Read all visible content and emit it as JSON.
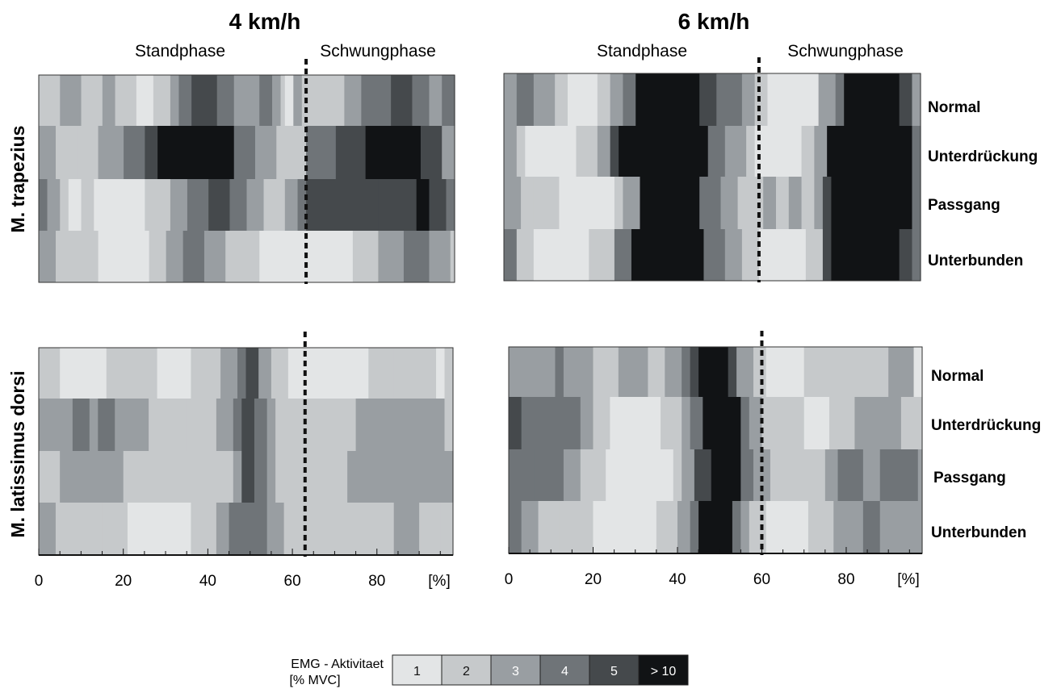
{
  "chart_data": {
    "type": "heatmap",
    "phase_labels": [
      "Standphase",
      "Schwungphase"
    ],
    "conditions": [
      "Normal",
      "Unterdrückung",
      "Passgang",
      "Unterbunden"
    ],
    "muscles": [
      "M. trapezius",
      "M. latissimus dorsi"
    ],
    "x_ticks": [
      "0",
      "20",
      "40",
      "60",
      "80",
      "[%]"
    ],
    "x_range": [
      0,
      100
    ],
    "legend": {
      "title_line1": "EMG - Aktivitaet",
      "title_line2": "[% MVC]",
      "levels": [
        "1",
        "2",
        "3",
        "4",
        "5",
        "> 10"
      ],
      "colors": [
        "#e3e5e6",
        "#c6c9cb",
        "#999ea2",
        "#6f7478",
        "#45494c",
        "#111315"
      ]
    },
    "panels": [
      {
        "speed": "4 km/h",
        "muscle": "M. trapezius",
        "divider": 63,
        "rows": [
          [
            [
              0,
              2
            ],
            [
              5,
              3
            ],
            [
              10,
              2
            ],
            [
              15,
              3
            ],
            [
              18,
              2
            ],
            [
              23,
              1
            ],
            [
              27,
              2
            ],
            [
              31,
              3
            ],
            [
              33,
              4
            ],
            [
              36,
              5
            ],
            [
              42,
              4
            ],
            [
              46,
              3
            ],
            [
              52,
              4
            ],
            [
              55,
              3
            ],
            [
              57,
              2
            ],
            [
              58,
              1
            ],
            [
              60,
              3
            ],
            [
              62,
              2
            ],
            [
              64,
              2
            ],
            [
              72,
              3
            ],
            [
              76,
              4
            ],
            [
              83,
              5
            ],
            [
              88,
              4
            ],
            [
              92,
              3
            ],
            [
              95,
              4
            ]
          ],
          [
            [
              0,
              3
            ],
            [
              4,
              2
            ],
            [
              9,
              2
            ],
            [
              14,
              3
            ],
            [
              20,
              4
            ],
            [
              25,
              5
            ],
            [
              28,
              6
            ],
            [
              46,
              4
            ],
            [
              51,
              3
            ],
            [
              56,
              2
            ],
            [
              61,
              2
            ],
            [
              63,
              4
            ],
            [
              70,
              5
            ],
            [
              77,
              6
            ],
            [
              90,
              5
            ],
            [
              95,
              3
            ]
          ],
          [
            [
              0,
              4
            ],
            [
              2,
              3
            ],
            [
              5,
              2
            ],
            [
              7,
              1
            ],
            [
              10,
              2
            ],
            [
              13,
              1
            ],
            [
              25,
              2
            ],
            [
              31,
              3
            ],
            [
              35,
              4
            ],
            [
              40,
              5
            ],
            [
              45,
              4
            ],
            [
              49,
              3
            ],
            [
              53,
              2
            ],
            [
              58,
              3
            ],
            [
              61,
              4
            ],
            [
              63,
              5
            ],
            [
              80,
              5
            ],
            [
              89,
              6
            ],
            [
              92,
              5
            ],
            [
              96,
              4
            ]
          ],
          [
            [
              0,
              3
            ],
            [
              4,
              2
            ],
            [
              14,
              1
            ],
            [
              19,
              1
            ],
            [
              26,
              2
            ],
            [
              30,
              3
            ],
            [
              34,
              4
            ],
            [
              39,
              3
            ],
            [
              44,
              2
            ],
            [
              52,
              1
            ],
            [
              59,
              1
            ],
            [
              63,
              1
            ],
            [
              74,
              2
            ],
            [
              80,
              3
            ],
            [
              86,
              4
            ],
            [
              92,
              3
            ],
            [
              97,
              2
            ]
          ]
        ]
      },
      {
        "speed": "6 km/h",
        "muscle": "M. trapezius",
        "divider": 60,
        "rows": [
          [
            [
              0,
              3
            ],
            [
              3,
              4
            ],
            [
              7,
              3
            ],
            [
              12,
              2
            ],
            [
              15,
              1
            ],
            [
              22,
              2
            ],
            [
              25,
              3
            ],
            [
              28,
              4
            ],
            [
              31,
              6
            ],
            [
              46,
              5
            ],
            [
              50,
              4
            ],
            [
              56,
              3
            ],
            [
              59,
              2
            ],
            [
              62,
              1
            ],
            [
              74,
              3
            ],
            [
              78,
              4
            ],
            [
              80,
              6
            ],
            [
              93,
              5
            ],
            [
              96,
              3
            ]
          ],
          [
            [
              0,
              3
            ],
            [
              3,
              2
            ],
            [
              5,
              1
            ],
            [
              12,
              1
            ],
            [
              17,
              2
            ],
            [
              22,
              3
            ],
            [
              25,
              5
            ],
            [
              27,
              6
            ],
            [
              48,
              4
            ],
            [
              52,
              3
            ],
            [
              57,
              2
            ],
            [
              59,
              1
            ],
            [
              65,
              1
            ],
            [
              70,
              2
            ],
            [
              73,
              3
            ],
            [
              76,
              6
            ],
            [
              96,
              4
            ]
          ],
          [
            [
              0,
              3
            ],
            [
              4,
              2
            ],
            [
              7,
              2
            ],
            [
              13,
              1
            ],
            [
              26,
              2
            ],
            [
              28,
              3
            ],
            [
              32,
              6
            ],
            [
              46,
              4
            ],
            [
              51,
              3
            ],
            [
              55,
              2
            ],
            [
              61,
              3
            ],
            [
              64,
              2
            ],
            [
              67,
              3
            ],
            [
              70,
              2
            ],
            [
              73,
              3
            ],
            [
              75,
              5
            ],
            [
              77,
              6
            ],
            [
              96,
              4
            ]
          ],
          [
            [
              0,
              4
            ],
            [
              3,
              2
            ],
            [
              7,
              1
            ],
            [
              14,
              1
            ],
            [
              20,
              2
            ],
            [
              26,
              4
            ],
            [
              30,
              6
            ],
            [
              47,
              4
            ],
            [
              52,
              3
            ],
            [
              56,
              2
            ],
            [
              60,
              1
            ],
            [
              71,
              2
            ],
            [
              75,
              5
            ],
            [
              77,
              6
            ],
            [
              93,
              5
            ],
            [
              96,
              4
            ]
          ]
        ]
      },
      {
        "speed": "4 km/h",
        "muscle": "M. latissimus dorsi",
        "divider": 63,
        "rows": [
          [
            [
              0,
              2
            ],
            [
              5,
              1
            ],
            [
              10,
              1
            ],
            [
              16,
              2
            ],
            [
              28,
              1
            ],
            [
              36,
              2
            ],
            [
              43,
              3
            ],
            [
              47,
              4
            ],
            [
              49,
              5
            ],
            [
              52,
              3
            ],
            [
              55,
              2
            ],
            [
              59,
              1
            ],
            [
              63,
              1
            ],
            [
              78,
              2
            ],
            [
              84,
              2
            ],
            [
              94,
              1
            ],
            [
              96,
              2
            ]
          ],
          [
            [
              0,
              3
            ],
            [
              8,
              4
            ],
            [
              12,
              3
            ],
            [
              14,
              4
            ],
            [
              18,
              3
            ],
            [
              26,
              2
            ],
            [
              35,
              2
            ],
            [
              42,
              3
            ],
            [
              46,
              4
            ],
            [
              48,
              5
            ],
            [
              51,
              4
            ],
            [
              54,
              3
            ],
            [
              56,
              2
            ],
            [
              61,
              2
            ],
            [
              75,
              3
            ],
            [
              96,
              2
            ]
          ],
          [
            [
              0,
              2
            ],
            [
              5,
              3
            ],
            [
              13,
              3
            ],
            [
              20,
              2
            ],
            [
              26,
              2
            ],
            [
              36,
              2
            ],
            [
              43,
              2
            ],
            [
              46,
              3
            ],
            [
              48,
              5
            ],
            [
              51,
              4
            ],
            [
              54,
              3
            ],
            [
              56,
              2
            ],
            [
              73,
              3
            ],
            [
              97,
              3
            ]
          ],
          [
            [
              0,
              3
            ],
            [
              4,
              2
            ],
            [
              15,
              2
            ],
            [
              21,
              1
            ],
            [
              36,
              2
            ],
            [
              42,
              3
            ],
            [
              45,
              4
            ],
            [
              50,
              4
            ],
            [
              54,
              3
            ],
            [
              58,
              2
            ],
            [
              62,
              2
            ],
            [
              84,
              3
            ],
            [
              90,
              2
            ],
            [
              95,
              2
            ]
          ]
        ]
      },
      {
        "speed": "6 km/h",
        "muscle": "M. latissimus dorsi",
        "divider": 60,
        "rows": [
          [
            [
              0,
              3
            ],
            [
              5,
              3
            ],
            [
              11,
              4
            ],
            [
              13,
              3
            ],
            [
              20,
              2
            ],
            [
              26,
              3
            ],
            [
              33,
              2
            ],
            [
              37,
              3
            ],
            [
              41,
              4
            ],
            [
              43,
              5
            ],
            [
              45,
              6
            ],
            [
              52,
              5
            ],
            [
              54,
              3
            ],
            [
              58,
              2
            ],
            [
              61,
              1
            ],
            [
              70,
              2
            ],
            [
              80,
              2
            ],
            [
              90,
              3
            ],
            [
              96,
              1
            ]
          ],
          [
            [
              0,
              5
            ],
            [
              3,
              4
            ],
            [
              13,
              4
            ],
            [
              17,
              3
            ],
            [
              20,
              2
            ],
            [
              24,
              1
            ],
            [
              36,
              2
            ],
            [
              41,
              3
            ],
            [
              43,
              4
            ],
            [
              46,
              6
            ],
            [
              55,
              4
            ],
            [
              57,
              3
            ],
            [
              60,
              2
            ],
            [
              65,
              2
            ],
            [
              70,
              1
            ],
            [
              76,
              2
            ],
            [
              82,
              3
            ],
            [
              88,
              3
            ],
            [
              93,
              2
            ]
          ],
          [
            [
              0,
              4
            ],
            [
              6,
              4
            ],
            [
              13,
              3
            ],
            [
              17,
              2
            ],
            [
              23,
              1
            ],
            [
              32,
              1
            ],
            [
              39,
              2
            ],
            [
              41,
              3
            ],
            [
              44,
              5
            ],
            [
              48,
              6
            ],
            [
              55,
              4
            ],
            [
              58,
              3
            ],
            [
              62,
              2
            ],
            [
              75,
              3
            ],
            [
              78,
              4
            ],
            [
              84,
              3
            ],
            [
              88,
              4
            ],
            [
              97,
              3
            ]
          ],
          [
            [
              0,
              4
            ],
            [
              3,
              3
            ],
            [
              7,
              2
            ],
            [
              12,
              2
            ],
            [
              20,
              1
            ],
            [
              30,
              1
            ],
            [
              35,
              2
            ],
            [
              40,
              3
            ],
            [
              43,
              4
            ],
            [
              45,
              6
            ],
            [
              53,
              4
            ],
            [
              55,
              3
            ],
            [
              57,
              2
            ],
            [
              61,
              1
            ],
            [
              71,
              2
            ],
            [
              77,
              3
            ],
            [
              84,
              4
            ],
            [
              88,
              3
            ]
          ]
        ]
      }
    ]
  }
}
